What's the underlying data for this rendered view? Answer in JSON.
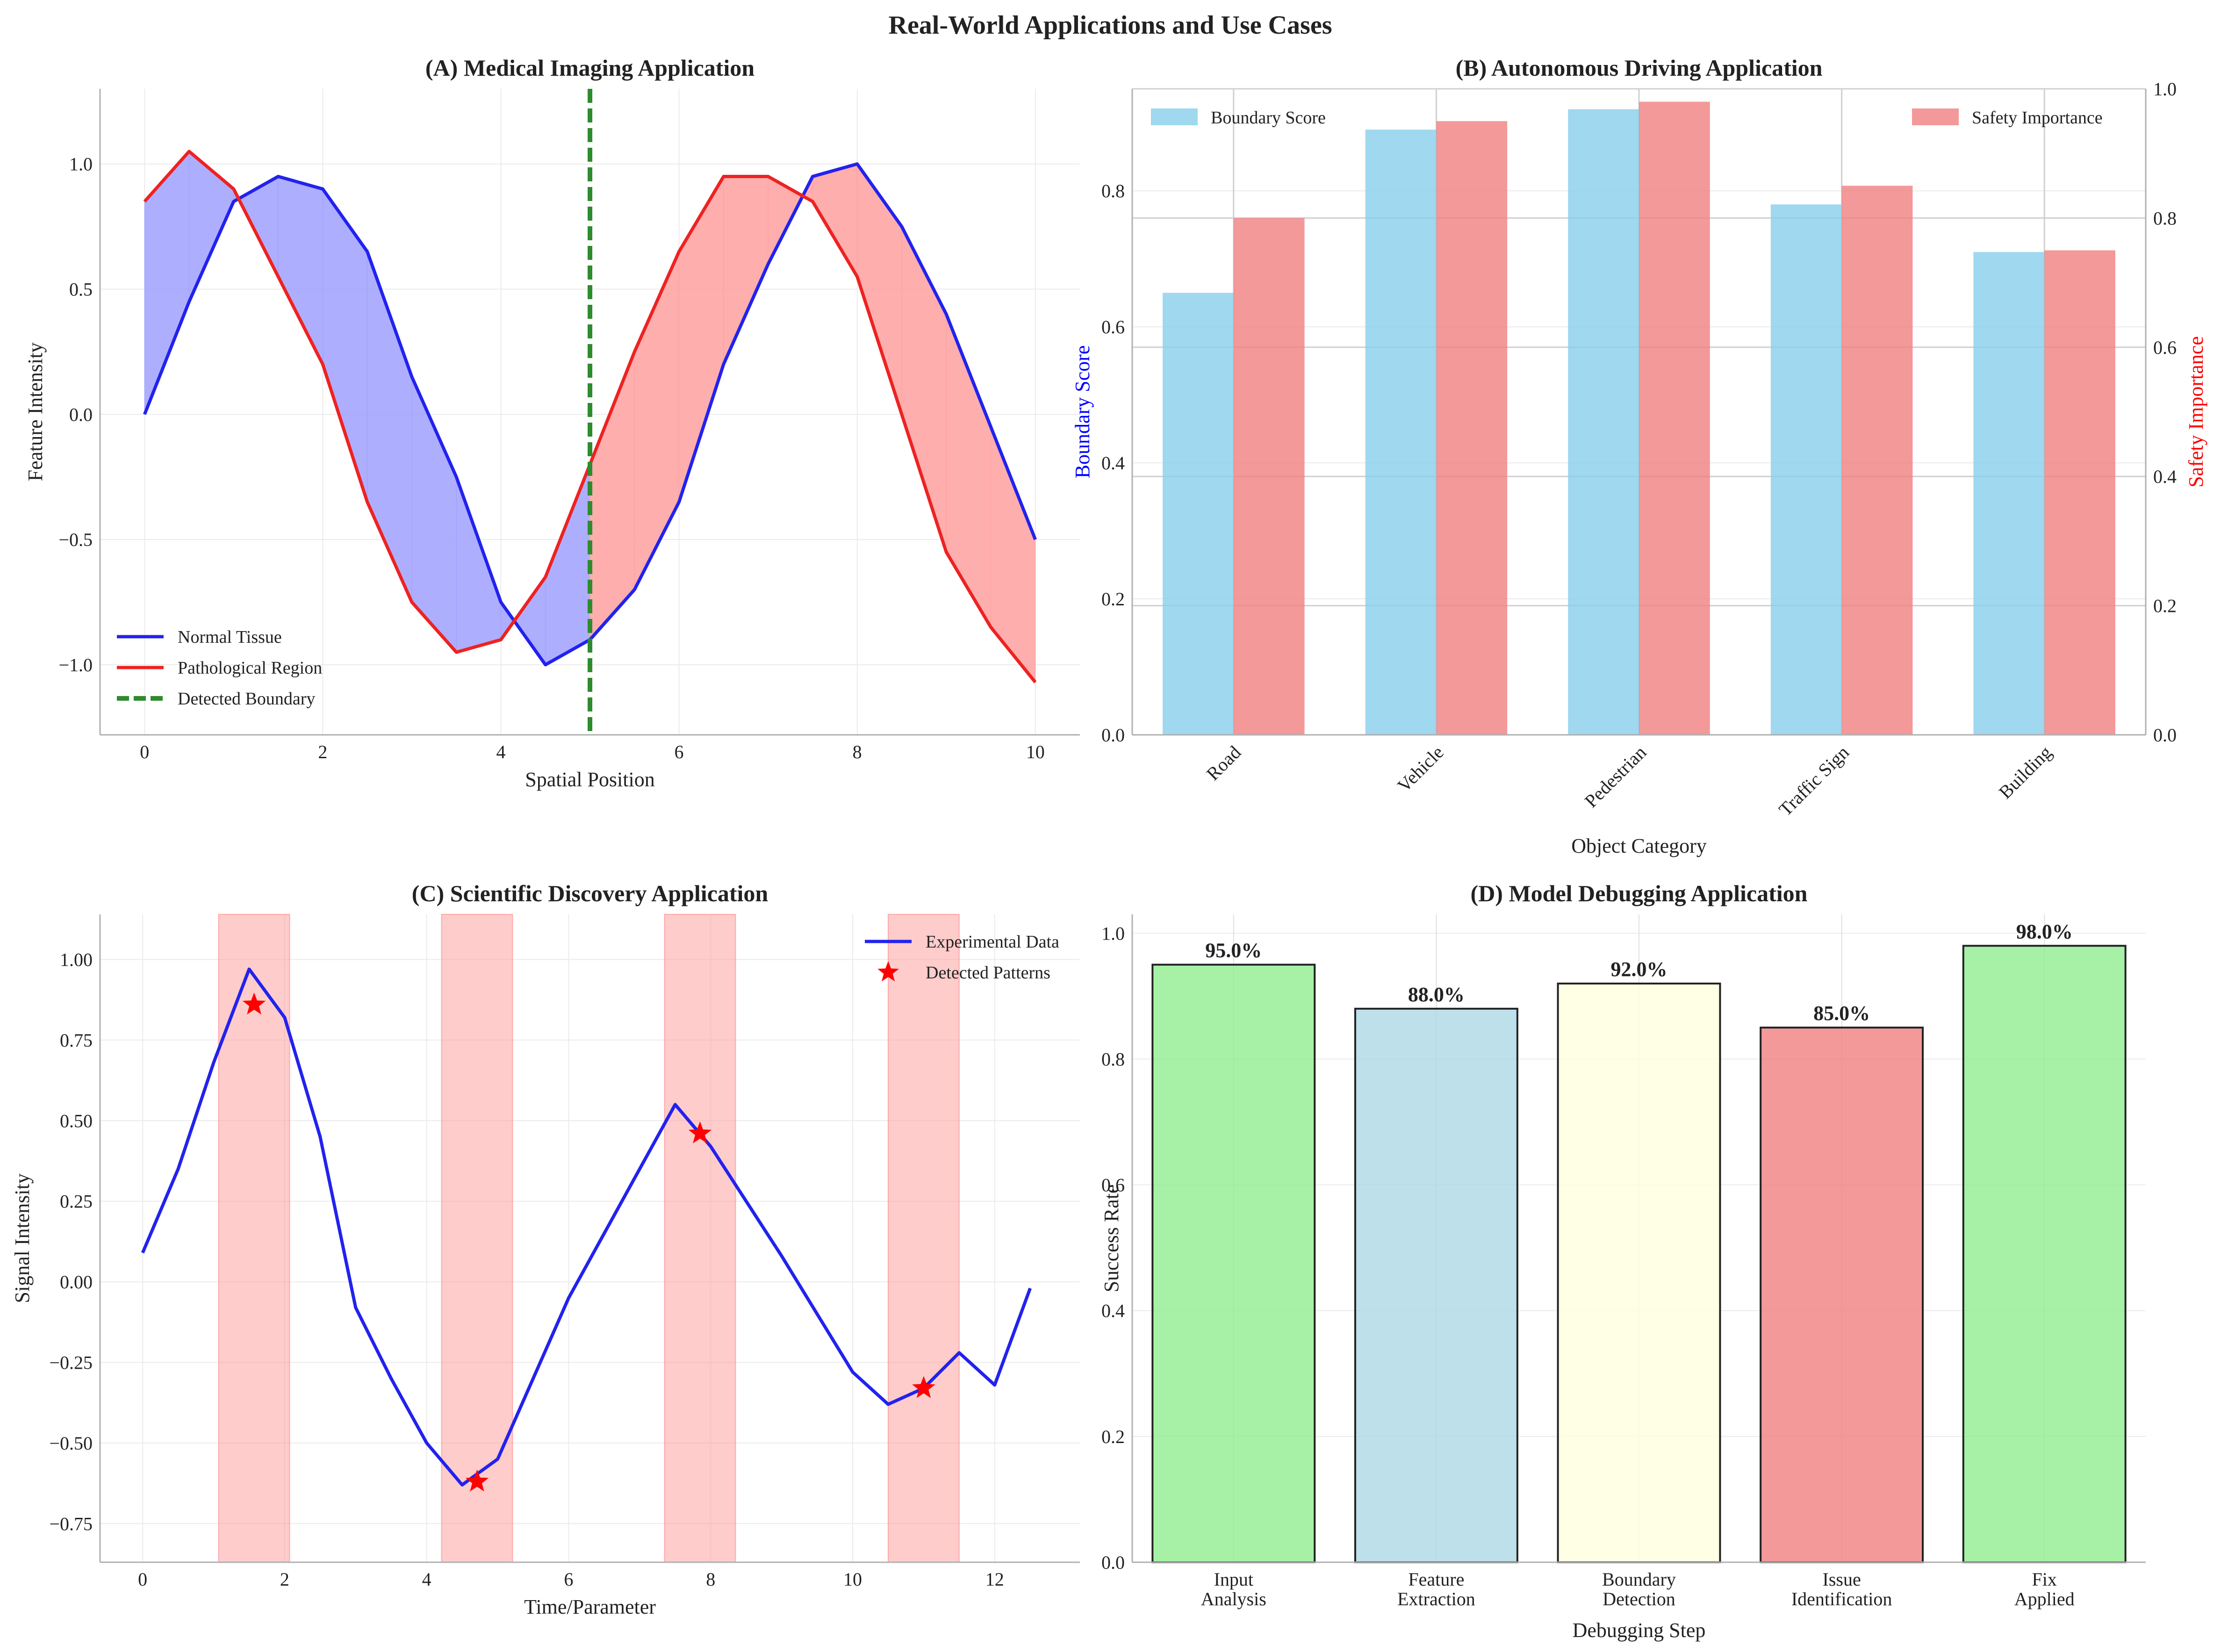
{
  "figure": {
    "title": "Real-World Applications and Use Cases"
  },
  "chart_data": [
    {
      "id": "A",
      "type": "line",
      "title": "(A) Medical Imaging Application",
      "xlabel": "Spatial Position",
      "ylabel": "Feature Intensity",
      "xlim": [
        -0.5,
        10.5
      ],
      "ylim": [
        -1.28,
        1.3
      ],
      "xticks": [
        0,
        2,
        4,
        6,
        8,
        10
      ],
      "yticks": [
        -1.0,
        -0.5,
        0.0,
        0.5,
        1.0
      ],
      "ytick_labels": [
        "−1.0",
        "−0.5",
        "0.0",
        "0.5",
        "1.0"
      ],
      "grid": true,
      "legend_position": "lower-left",
      "boundary": {
        "name": "Detected Boundary",
        "x": 5.0,
        "color": "#2e8b2e"
      },
      "fill_colors": {
        "normal_above": "#a0a0ff",
        "pathological_above": "#ffa0a0"
      },
      "series": [
        {
          "name": "Normal Tissue",
          "color": "#2222ee",
          "x": [
            0,
            0.5,
            1,
            1.5,
            2,
            2.5,
            3,
            3.5,
            4,
            4.5,
            5,
            5.5,
            6,
            6.5,
            7,
            7.5,
            8,
            8.5,
            9,
            9.5,
            10
          ],
          "y": [
            0.0,
            0.45,
            0.85,
            0.95,
            0.9,
            0.65,
            0.15,
            -0.25,
            -0.75,
            -1.0,
            -0.9,
            -0.7,
            -0.35,
            0.2,
            0.6,
            0.95,
            1.0,
            0.75,
            0.4,
            -0.05,
            -0.5
          ]
        },
        {
          "name": "Pathological Region",
          "color": "#ee2222",
          "x": [
            0,
            0.5,
            1,
            1.5,
            2,
            2.5,
            3,
            3.5,
            4,
            4.5,
            5,
            5.5,
            6,
            6.5,
            7,
            7.5,
            8,
            8.5,
            9,
            9.5,
            10
          ],
          "y": [
            0.85,
            1.05,
            0.9,
            0.55,
            0.2,
            -0.35,
            -0.75,
            -0.95,
            -0.9,
            -0.65,
            -0.2,
            0.25,
            0.65,
            0.95,
            0.95,
            0.85,
            0.55,
            0.0,
            -0.55,
            -0.85,
            -1.07
          ]
        }
      ]
    },
    {
      "id": "B",
      "type": "bar",
      "title": "(B) Autonomous Driving Application",
      "xlabel": "Object Category",
      "ylabel": "Boundary Score",
      "y2label": "Safety Importance",
      "ylim": [
        0,
        0.95
      ],
      "y2lim": [
        0,
        1.0
      ],
      "yticks": [
        0.0,
        0.2,
        0.4,
        0.6,
        0.8
      ],
      "y2ticks": [
        0.0,
        0.2,
        0.4,
        0.6,
        0.8,
        1.0
      ],
      "ylabel_color": "#0000ff",
      "y2label_color": "#ff0000",
      "legend_position": "top-left / top-right",
      "categories": [
        "Road",
        "Vehicle",
        "Pedestrian",
        "Traffic Sign",
        "Building"
      ],
      "series": [
        {
          "name": "Boundary Score",
          "axis": "left",
          "color": "#87ceeb",
          "values": [
            0.65,
            0.89,
            0.92,
            0.78,
            0.71
          ]
        },
        {
          "name": "Safety Importance",
          "axis": "right",
          "color": "#f08080",
          "values": [
            0.8,
            0.95,
            0.98,
            0.85,
            0.75
          ]
        }
      ]
    },
    {
      "id": "C",
      "type": "line",
      "title": "(C) Scientific Discovery Application",
      "xlabel": "Time/Parameter",
      "ylabel": "Signal Intensity",
      "xlim": [
        -0.6,
        13.2
      ],
      "ylim": [
        -0.87,
        1.14
      ],
      "xticks": [
        0,
        2,
        4,
        6,
        8,
        10,
        12
      ],
      "yticks": [
        -0.75,
        -0.5,
        -0.25,
        0.0,
        0.25,
        0.5,
        0.75,
        1.0
      ],
      "ytick_labels": [
        "−0.75",
        "−0.50",
        "−0.25",
        "0.00",
        "0.25",
        "0.50",
        "0.75",
        "1.00"
      ],
      "grid": true,
      "legend_position": "top-right",
      "highlight_spans": [
        [
          1.07,
          2.07
        ],
        [
          4.21,
          5.21
        ],
        [
          7.35,
          8.35
        ],
        [
          10.5,
          11.5
        ]
      ],
      "series": [
        {
          "name": "Experimental Data",
          "color": "#2222ee",
          "x": [
            0,
            0.5,
            1,
            1.5,
            2,
            2.5,
            3,
            3.5,
            4,
            4.5,
            5,
            5.5,
            6,
            6.5,
            7,
            7.5,
            8,
            8.5,
            9,
            9.5,
            10,
            10.5,
            11,
            11.5,
            12,
            12.5
          ],
          "y": [
            0.09,
            0.35,
            0.68,
            0.97,
            0.82,
            0.45,
            -0.08,
            -0.3,
            -0.5,
            -0.63,
            -0.55,
            -0.3,
            -0.05,
            0.15,
            0.35,
            0.55,
            0.42,
            0.25,
            0.08,
            -0.1,
            -0.28,
            -0.38,
            -0.33,
            -0.22,
            -0.32,
            -0.02
          ]
        }
      ],
      "markers": {
        "name": "Detected Patterns",
        "color": "#ff0000",
        "x": [
          1.57,
          4.71,
          7.85,
          11.0
        ],
        "y": [
          0.86,
          -0.62,
          0.46,
          -0.33
        ]
      }
    },
    {
      "id": "D",
      "type": "bar",
      "title": "(D) Model Debugging Application",
      "xlabel": "Debugging Step",
      "ylabel": "Success Rate",
      "ylim": [
        0,
        1.03
      ],
      "yticks": [
        0.0,
        0.2,
        0.4,
        0.6,
        0.8,
        1.0
      ],
      "grid": true,
      "categories": [
        [
          "Input",
          "Analysis"
        ],
        [
          "Feature",
          "Extraction"
        ],
        [
          "Boundary",
          "Detection"
        ],
        [
          "Issue",
          "Identification"
        ],
        [
          "Fix",
          "Applied"
        ]
      ],
      "values": [
        0.95,
        0.88,
        0.92,
        0.85,
        0.98
      ],
      "labels": [
        "95.0%",
        "88.0%",
        "92.0%",
        "85.0%",
        "98.0%"
      ],
      "colors": [
        "#90ee90",
        "#add8e6",
        "#ffffe0",
        "#f08080",
        "#90ee90"
      ]
    }
  ]
}
